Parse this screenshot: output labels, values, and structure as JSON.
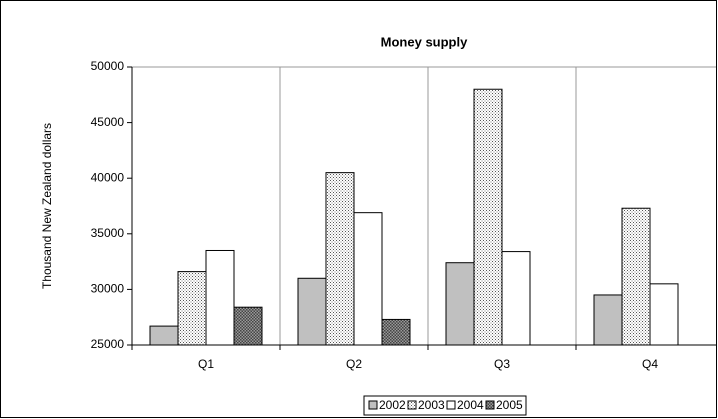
{
  "chart_data": {
    "type": "bar",
    "title": "Money supply",
    "y_label": "Thousand New Zealand dollars",
    "categories": [
      "Q1",
      "Q2",
      "Q3",
      "Q4"
    ],
    "series": [
      {
        "name": "2002",
        "color": "#c0c0c0",
        "pattern": "solid",
        "values": [
          26700,
          31000,
          32400,
          29500
        ]
      },
      {
        "name": "2003",
        "color": "#ffffff",
        "pattern": "dots",
        "values": [
          31600,
          40500,
          48000,
          37300
        ]
      },
      {
        "name": "2004",
        "color": "#ffffff",
        "pattern": "solid",
        "values": [
          33500,
          36900,
          33400,
          30500
        ]
      },
      {
        "name": "2005",
        "color": "#a0a0a0",
        "pattern": "crosshatch",
        "values": [
          28400,
          27300,
          null,
          null
        ]
      }
    ],
    "ylim": [
      25000,
      50000
    ],
    "yticks": [
      25000,
      30000,
      35000,
      40000,
      45000,
      50000
    ],
    "category_grid": true,
    "legend": "bottom"
  }
}
